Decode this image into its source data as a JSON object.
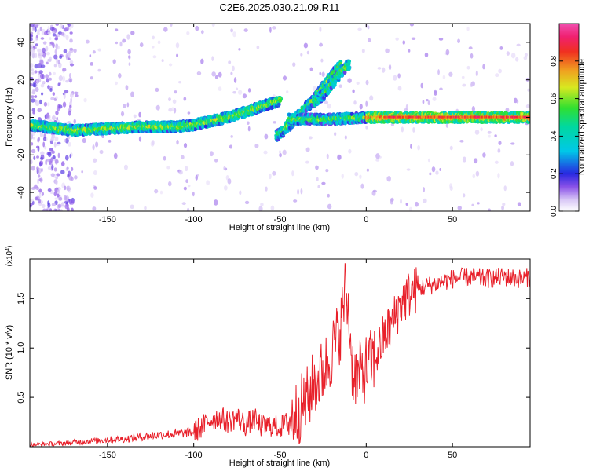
{
  "title": "C2E6.2025.030.21.09.R11",
  "colors": {
    "axis": "#000000",
    "snr_line": "#e8202a",
    "spectrum_low": "#c9b6f2",
    "spectrum_high": "#e8202a"
  },
  "chart_data": [
    {
      "type": "heatmap",
      "title": "C2E6.2025.030.21.09.R11",
      "xlabel": "Height of straight line (km)",
      "ylabel": "Frequency (Hz)",
      "xlim": [
        -195,
        95
      ],
      "ylim": [
        -50,
        50
      ],
      "x_ticks": [
        -150,
        -100,
        -50,
        0,
        50
      ],
      "x_tick_labels": [
        "-150",
        "-100",
        "-50",
        "0",
        "50"
      ],
      "y_ticks": [
        -40,
        -20,
        0,
        20,
        40
      ],
      "y_tick_labels": [
        "-40",
        "-20",
        "0",
        "20",
        "40"
      ],
      "grid": false,
      "colorbar": {
        "label": "Normalized spectral amplitude",
        "range": [
          0.0,
          1.0
        ],
        "ticks": [
          0.0,
          0.2,
          0.4,
          0.6,
          0.8
        ],
        "tick_labels": [
          "0.0",
          "0.2",
          "0.4",
          "0.6",
          "0.8"
        ]
      },
      "ridges": [
        {
          "name": "main",
          "x": [
            -195,
            -170,
            -150,
            -130,
            -110,
            -100,
            -90,
            -80,
            -70,
            -60,
            -50
          ],
          "y": [
            -4,
            -7,
            -6,
            -5,
            -5,
            -4,
            -2,
            0,
            3,
            6,
            9
          ]
        },
        {
          "name": "branch",
          "x": [
            -45,
            -40,
            -35,
            -30,
            -25,
            -20,
            -15
          ],
          "y": [
            -5,
            0,
            5,
            10,
            16,
            22,
            28
          ]
        },
        {
          "name": "lower",
          "x": [
            -52,
            -48,
            -45,
            -42
          ],
          "y": [
            -10,
            -7,
            -4,
            -2
          ]
        },
        {
          "name": "rise",
          "x": [
            -30,
            -25,
            -20,
            -15,
            -10
          ],
          "y": [
            8,
            12,
            18,
            24,
            28
          ]
        },
        {
          "name": "flat",
          "x": [
            -45,
            -20,
            0,
            10,
            40,
            70,
            95
          ],
          "y": [
            -1,
            -1,
            0,
            0,
            0,
            0,
            0
          ]
        }
      ]
    },
    {
      "type": "line",
      "xlabel": "Height of straight line (km)",
      "ylabel": "SNR (10 * v/v)",
      "y_scale_label": "(x10",
      "y_scale_exp": "4",
      "xlim": [
        -195,
        95
      ],
      "ylim": [
        0,
        1.9
      ],
      "x_ticks": [
        -150,
        -100,
        -50,
        0,
        50
      ],
      "x_tick_labels": [
        "-150",
        "-100",
        "-50",
        "0",
        "50"
      ],
      "y_ticks": [
        0.5,
        1.0,
        1.5
      ],
      "y_tick_labels": [
        "0.5",
        "1.0",
        "1.5"
      ],
      "grid": false,
      "series": [
        {
          "x": [
            -195,
            -180,
            -165,
            -150,
            -140,
            -130,
            -120,
            -110,
            -100,
            -95,
            -90,
            -85,
            -80,
            -75,
            -70,
            -65,
            -60,
            -55,
            -50,
            -45,
            -40,
            -35,
            -30,
            -25,
            -20,
            -15,
            -12,
            -10,
            -8,
            -5,
            0,
            5,
            10,
            15,
            20,
            25,
            30,
            40,
            50,
            60,
            70,
            80,
            90,
            95
          ],
          "values": [
            0.02,
            0.03,
            0.05,
            0.07,
            0.08,
            0.1,
            0.12,
            0.13,
            0.15,
            0.2,
            0.28,
            0.3,
            0.25,
            0.3,
            0.22,
            0.28,
            0.2,
            0.22,
            0.2,
            0.25,
            0.35,
            0.45,
            0.65,
            0.75,
            0.95,
            1.2,
            1.6,
            1.3,
            0.8,
            0.7,
            0.8,
            0.9,
            1.1,
            1.25,
            1.45,
            1.55,
            1.6,
            1.65,
            1.7,
            1.72,
            1.7,
            1.72,
            1.7,
            1.72
          ]
        }
      ]
    }
  ]
}
